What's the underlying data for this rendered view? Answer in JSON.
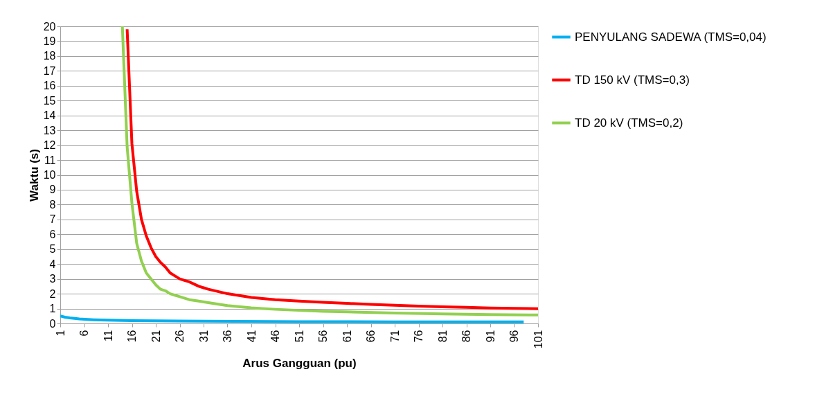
{
  "chart_data": {
    "type": "line",
    "xlabel": "Arus Gangguan (pu)",
    "ylabel": "Waktu (s)",
    "xlim": [
      1,
      101
    ],
    "xticks": [
      1,
      6,
      11,
      16,
      21,
      26,
      31,
      36,
      41,
      46,
      51,
      56,
      61,
      66,
      71,
      76,
      81,
      86,
      91,
      96,
      101
    ],
    "ylim": [
      0,
      20
    ],
    "yticks": [
      0,
      1,
      2,
      3,
      4,
      5,
      6,
      7,
      8,
      9,
      10,
      11,
      12,
      13,
      14,
      15,
      16,
      17,
      18,
      19,
      20
    ],
    "grid": "y",
    "legend": "right",
    "marker": "none",
    "line_style": "solid",
    "series": [
      {
        "name": "PENYULANG SADEWA (TMS=0,04)",
        "color": "#00b0f0",
        "x": [
          1,
          2,
          3,
          5,
          8,
          11,
          16,
          21,
          31,
          51,
          71,
          98
        ],
        "values": [
          0.5,
          0.42,
          0.37,
          0.3,
          0.25,
          0.22,
          0.19,
          0.17,
          0.15,
          0.12,
          0.11,
          0.1
        ]
      },
      {
        "name": "TD 150 kV (TMS=0,3)",
        "color": "#ff0000",
        "x": [
          15,
          16,
          17,
          18,
          19,
          20,
          21,
          22,
          23,
          24,
          25,
          26,
          27,
          28,
          29,
          30,
          31,
          32,
          36,
          41,
          46,
          51,
          56,
          61,
          66,
          71,
          76,
          81,
          86,
          91,
          96,
          101
        ],
        "values": [
          19.8,
          12.1,
          8.9,
          7.0,
          5.9,
          5.1,
          4.5,
          4.1,
          3.8,
          3.4,
          3.2,
          3.0,
          2.9,
          2.8,
          2.65,
          2.5,
          2.4,
          2.3,
          2.0,
          1.75,
          1.6,
          1.5,
          1.42,
          1.35,
          1.28,
          1.22,
          1.17,
          1.12,
          1.08,
          1.04,
          1.01,
          0.99
        ]
      },
      {
        "name": "TD 20 kV (TMS=0,2)",
        "color": "#92d050",
        "x": [
          14,
          15,
          16,
          17,
          18,
          19,
          20,
          21,
          22,
          23,
          24,
          25,
          26,
          28,
          30,
          32,
          36,
          41,
          46,
          51,
          56,
          61,
          71,
          81,
          91,
          101
        ],
        "values": [
          20,
          11.9,
          8.1,
          5.4,
          4.2,
          3.4,
          3.0,
          2.6,
          2.3,
          2.2,
          2.0,
          1.9,
          1.8,
          1.6,
          1.5,
          1.4,
          1.2,
          1.05,
          0.95,
          0.88,
          0.82,
          0.78,
          0.7,
          0.64,
          0.6,
          0.57
        ]
      }
    ]
  }
}
